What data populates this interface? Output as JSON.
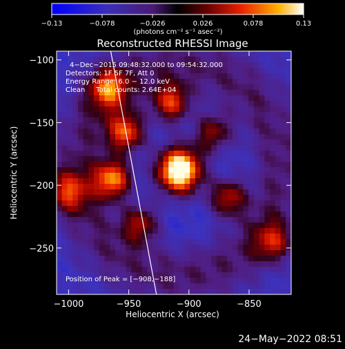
{
  "chart_data": {
    "type": "heatmap",
    "title": "Reconstructed RHESSI Image",
    "xlabel": "Heliocentric X (arcsec)",
    "ylabel": "Heliocentric Y (arcsec)",
    "xlim": [
      -1010,
      -815
    ],
    "ylim": [
      -287,
      -93
    ],
    "x_ticks": [
      -1000,
      -950,
      -900,
      -850
    ],
    "x_tick_labels": [
      "−1000",
      "−950",
      "−900",
      "−850"
    ],
    "y_ticks": [
      -100,
      -150,
      -200,
      -250
    ],
    "y_tick_labels": [
      "−100",
      "−150",
      "−200",
      "−250"
    ],
    "colorbar": {
      "range": [
        -0.13,
        0.13
      ],
      "ticks": [
        -0.13,
        -0.078,
        -0.026,
        0.026,
        0.078,
        0.13
      ],
      "tick_labels": [
        "−0.13",
        "−0.078",
        "−0.026",
        "0.026",
        "0.078",
        "0.13"
      ],
      "units_label": "(photons cm⁻² s⁻¹ asec⁻²)"
    },
    "annotations": [
      "4−Dec−2015 09:48:32.000 to 09:54:32.000",
      "Detectors: 1F 5F 7F, Att 0",
      "Energy Range: 6.0 − 12.0 keV",
      "Clean     Total counts: 2.64E+04"
    ],
    "peak_label": "Position of Peak = [−908,−188]",
    "peak": [
      -908,
      -188
    ],
    "limb_line": [
      [
        -965,
        -93
      ],
      [
        -927,
        -287
      ]
    ],
    "sources": [
      {
        "x": -908,
        "y": -188,
        "value": 0.13
      },
      {
        "x": -967,
        "y": -123,
        "value": 0.085
      },
      {
        "x": -952,
        "y": -158,
        "value": 0.1
      },
      {
        "x": -963,
        "y": -195,
        "value": 0.11
      },
      {
        "x": -915,
        "y": -135,
        "value": 0.09
      },
      {
        "x": -880,
        "y": -158,
        "value": 0.07
      },
      {
        "x": -868,
        "y": -210,
        "value": 0.08
      },
      {
        "x": -940,
        "y": -230,
        "value": 0.07
      },
      {
        "x": -1000,
        "y": -205,
        "value": 0.07
      },
      {
        "x": -830,
        "y": -245,
        "value": 0.06
      }
    ]
  },
  "footer": {
    "timestamp": "24−May−2022 08:51"
  }
}
